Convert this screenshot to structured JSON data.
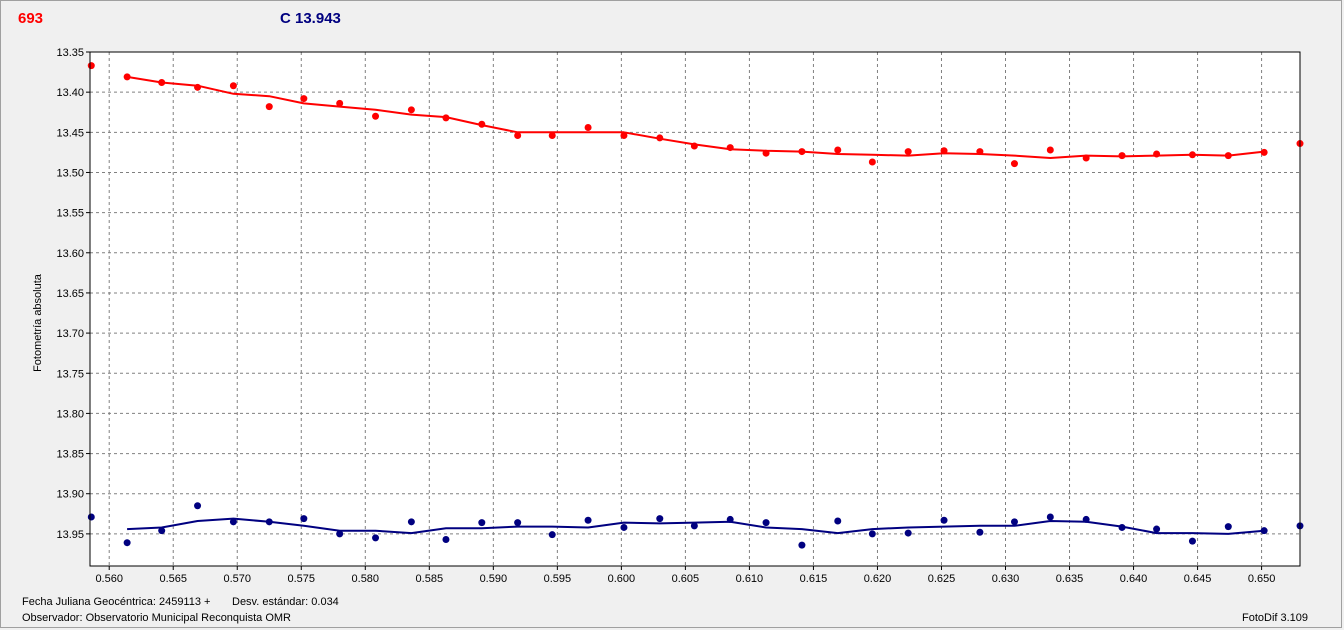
{
  "header": {
    "target_label": "693",
    "comparison_label": "C 13.943"
  },
  "footer": {
    "jd_label": "Fecha Juliana Geocéntrica: 2459113 +",
    "std_label": "Desv. estándar: 0.034",
    "observer_label": "Observador: Observatorio Municipal Reconquista OMR",
    "software_label": "FotoDif 3.109"
  },
  "colors": {
    "target": "#ff0000",
    "comparison": "#000080",
    "grid": "#808080",
    "plot_bg": "#ffffff"
  },
  "chart_data": {
    "type": "scatter",
    "ylabel": "Fotometría absoluta",
    "xlabel": "",
    "xlim": [
      0.5585,
      0.653
    ],
    "ylim": [
      13.35,
      13.99
    ],
    "y_inverted": true,
    "grid": true,
    "x_ticks": [
      "0.560",
      "0.565",
      "0.570",
      "0.575",
      "0.580",
      "0.585",
      "0.590",
      "0.595",
      "0.600",
      "0.605",
      "0.610",
      "0.615",
      "0.620",
      "0.625",
      "0.630",
      "0.635",
      "0.640",
      "0.645",
      "0.650"
    ],
    "y_ticks": [
      "13.35",
      "13.40",
      "13.45",
      "13.50",
      "13.55",
      "13.60",
      "13.65",
      "13.70",
      "13.75",
      "13.80",
      "13.85",
      "13.90",
      "13.95"
    ],
    "series": [
      {
        "color_key": "target",
        "points": [
          [
            0.5586,
            13.367
          ],
          [
            0.5614,
            13.381
          ],
          [
            0.5641,
            13.388
          ],
          [
            0.5669,
            13.394
          ],
          [
            0.5697,
            13.392
          ],
          [
            0.5725,
            13.418
          ],
          [
            0.5752,
            13.408
          ],
          [
            0.578,
            13.414
          ],
          [
            0.5808,
            13.43
          ],
          [
            0.5836,
            13.422
          ],
          [
            0.5863,
            13.432
          ],
          [
            0.5891,
            13.44
          ],
          [
            0.5919,
            13.454
          ],
          [
            0.5946,
            13.454
          ],
          [
            0.5974,
            13.444
          ],
          [
            0.6002,
            13.454
          ],
          [
            0.603,
            13.457
          ],
          [
            0.6057,
            13.467
          ],
          [
            0.6085,
            13.469
          ],
          [
            0.6113,
            13.476
          ],
          [
            0.6141,
            13.474
          ],
          [
            0.6169,
            13.472
          ],
          [
            0.6196,
            13.487
          ],
          [
            0.6224,
            13.474
          ],
          [
            0.6252,
            13.473
          ],
          [
            0.628,
            13.474
          ],
          [
            0.6307,
            13.489
          ],
          [
            0.6335,
            13.472
          ],
          [
            0.6363,
            13.482
          ],
          [
            0.6391,
            13.479
          ],
          [
            0.6418,
            13.477
          ],
          [
            0.6446,
            13.478
          ],
          [
            0.6474,
            13.479
          ],
          [
            0.6502,
            13.475
          ],
          [
            0.653,
            13.464
          ]
        ],
        "trend": [
          [
            0.5614,
            13.381
          ],
          [
            0.5641,
            13.388
          ],
          [
            0.5669,
            13.392
          ],
          [
            0.5697,
            13.402
          ],
          [
            0.5725,
            13.405
          ],
          [
            0.5752,
            13.414
          ],
          [
            0.578,
            13.418
          ],
          [
            0.5808,
            13.422
          ],
          [
            0.5836,
            13.428
          ],
          [
            0.5863,
            13.431
          ],
          [
            0.5891,
            13.441
          ],
          [
            0.5919,
            13.45
          ],
          [
            0.5946,
            13.45
          ],
          [
            0.5974,
            13.45
          ],
          [
            0.6002,
            13.45
          ],
          [
            0.603,
            13.458
          ],
          [
            0.6057,
            13.465
          ],
          [
            0.6085,
            13.471
          ],
          [
            0.6113,
            13.473
          ],
          [
            0.6141,
            13.474
          ],
          [
            0.6169,
            13.477
          ],
          [
            0.6196,
            13.478
          ],
          [
            0.6224,
            13.479
          ],
          [
            0.6252,
            13.476
          ],
          [
            0.628,
            13.477
          ],
          [
            0.6307,
            13.479
          ],
          [
            0.6335,
            13.482
          ],
          [
            0.6363,
            13.479
          ],
          [
            0.6391,
            13.48
          ],
          [
            0.6418,
            13.479
          ],
          [
            0.6446,
            13.478
          ],
          [
            0.6474,
            13.479
          ],
          [
            0.6502,
            13.474
          ]
        ]
      },
      {
        "color_key": "comparison",
        "points": [
          [
            0.5586,
            13.929
          ],
          [
            0.5614,
            13.961
          ],
          [
            0.5641,
            13.946
          ],
          [
            0.5669,
            13.915
          ],
          [
            0.5697,
            13.935
          ],
          [
            0.5725,
            13.935
          ],
          [
            0.5752,
            13.931
          ],
          [
            0.578,
            13.95
          ],
          [
            0.5808,
            13.955
          ],
          [
            0.5836,
            13.935
          ],
          [
            0.5863,
            13.957
          ],
          [
            0.5891,
            13.936
          ],
          [
            0.5919,
            13.936
          ],
          [
            0.5946,
            13.951
          ],
          [
            0.5974,
            13.933
          ],
          [
            0.6002,
            13.942
          ],
          [
            0.603,
            13.931
          ],
          [
            0.6057,
            13.94
          ],
          [
            0.6085,
            13.932
          ],
          [
            0.6113,
            13.936
          ],
          [
            0.6141,
            13.964
          ],
          [
            0.6169,
            13.934
          ],
          [
            0.6196,
            13.95
          ],
          [
            0.6224,
            13.949
          ],
          [
            0.6252,
            13.933
          ],
          [
            0.628,
            13.948
          ],
          [
            0.6307,
            13.935
          ],
          [
            0.6335,
            13.929
          ],
          [
            0.6363,
            13.932
          ],
          [
            0.6391,
            13.942
          ],
          [
            0.6418,
            13.944
          ],
          [
            0.6446,
            13.959
          ],
          [
            0.6474,
            13.941
          ],
          [
            0.6502,
            13.946
          ],
          [
            0.653,
            13.94
          ]
        ],
        "trend": [
          [
            0.5614,
            13.944
          ],
          [
            0.5641,
            13.942
          ],
          [
            0.5669,
            13.934
          ],
          [
            0.5697,
            13.931
          ],
          [
            0.5725,
            13.935
          ],
          [
            0.5752,
            13.94
          ],
          [
            0.578,
            13.946
          ],
          [
            0.5808,
            13.946
          ],
          [
            0.5836,
            13.949
          ],
          [
            0.5863,
            13.943
          ],
          [
            0.5891,
            13.943
          ],
          [
            0.5919,
            13.941
          ],
          [
            0.5946,
            13.941
          ],
          [
            0.5974,
            13.942
          ],
          [
            0.6002,
            13.936
          ],
          [
            0.603,
            13.937
          ],
          [
            0.6057,
            13.936
          ],
          [
            0.6085,
            13.935
          ],
          [
            0.6113,
            13.942
          ],
          [
            0.6141,
            13.944
          ],
          [
            0.6169,
            13.949
          ],
          [
            0.6196,
            13.944
          ],
          [
            0.6224,
            13.942
          ],
          [
            0.6252,
            13.941
          ],
          [
            0.628,
            13.94
          ],
          [
            0.6307,
            13.94
          ],
          [
            0.6335,
            13.934
          ],
          [
            0.6363,
            13.935
          ],
          [
            0.6391,
            13.941
          ],
          [
            0.6418,
            13.949
          ],
          [
            0.6446,
            13.949
          ],
          [
            0.6474,
            13.95
          ],
          [
            0.6502,
            13.946
          ]
        ]
      }
    ]
  }
}
